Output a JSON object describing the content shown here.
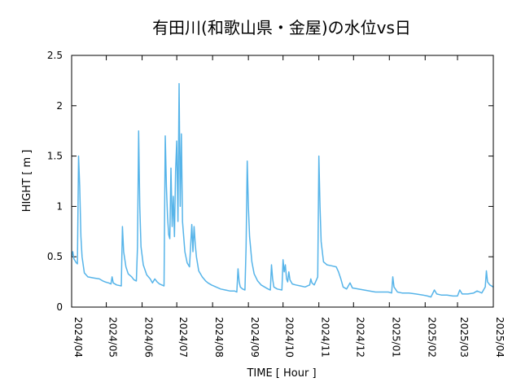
{
  "chart_data": {
    "type": "line",
    "title": "有田川(和歌山県・金屋)の水位vs日",
    "xlabel": "TIME [ Hour ]",
    "ylabel": "HIGHT [ m ]",
    "xlim": [
      "2024-04-01",
      "2025-04-01"
    ],
    "ylim": [
      0,
      2.5
    ],
    "grid": false,
    "legend": "none",
    "line_color": "#56b4e9",
    "x_ticks": [
      "2024/04",
      "2024/05",
      "2024/06",
      "2024/07",
      "2024/08",
      "2024/09",
      "2024/10",
      "2024/11",
      "2024/12",
      "2025/01",
      "2025/02",
      "2025/03",
      "2025/04"
    ],
    "x_tick_dates": [
      "2024-04-01",
      "2024-05-01",
      "2024-06-01",
      "2024-07-01",
      "2024-08-01",
      "2024-09-01",
      "2024-10-01",
      "2024-11-01",
      "2024-12-01",
      "2025-01-01",
      "2025-02-01",
      "2025-03-01",
      "2025-04-01"
    ],
    "y_ticks": [
      "0",
      "0.5",
      "1",
      "1.5",
      "2",
      "2.5"
    ],
    "y_tick_values": [
      0,
      0.5,
      1,
      1.5,
      2,
      2.5
    ],
    "series": [
      {
        "points": [
          [
            "2024-04-01",
            0.5
          ],
          [
            "2024-04-02",
            0.55
          ],
          [
            "2024-04-03",
            0.48
          ],
          [
            "2024-04-05",
            0.44
          ],
          [
            "2024-04-06",
            0.43
          ],
          [
            "2024-04-07",
            1.5
          ],
          [
            "2024-04-08",
            1.2
          ],
          [
            "2024-04-09",
            0.7
          ],
          [
            "2024-04-10",
            0.5
          ],
          [
            "2024-04-12",
            0.34
          ],
          [
            "2024-04-15",
            0.3
          ],
          [
            "2024-04-20",
            0.29
          ],
          [
            "2024-04-25",
            0.28
          ],
          [
            "2024-04-28",
            0.26
          ],
          [
            "2024-04-30",
            0.25
          ],
          [
            "2024-05-03",
            0.24
          ],
          [
            "2024-05-05",
            0.23
          ],
          [
            "2024-05-06",
            0.3
          ],
          [
            "2024-05-07",
            0.24
          ],
          [
            "2024-05-10",
            0.22
          ],
          [
            "2024-05-14",
            0.21
          ],
          [
            "2024-05-15",
            0.8
          ],
          [
            "2024-05-16",
            0.55
          ],
          [
            "2024-05-18",
            0.4
          ],
          [
            "2024-05-20",
            0.33
          ],
          [
            "2024-05-23",
            0.3
          ],
          [
            "2024-05-25",
            0.27
          ],
          [
            "2024-05-27",
            0.26
          ],
          [
            "2024-05-28",
            0.6
          ],
          [
            "2024-05-29",
            1.75
          ],
          [
            "2024-05-30",
            1.0
          ],
          [
            "2024-05-31",
            0.6
          ],
          [
            "2024-06-02",
            0.42
          ],
          [
            "2024-06-05",
            0.32
          ],
          [
            "2024-06-08",
            0.28
          ],
          [
            "2024-06-10",
            0.24
          ],
          [
            "2024-06-12",
            0.28
          ],
          [
            "2024-06-14",
            0.25
          ],
          [
            "2024-06-16",
            0.23
          ],
          [
            "2024-06-18",
            0.22
          ],
          [
            "2024-06-20",
            0.21
          ],
          [
            "2024-06-21",
            1.7
          ],
          [
            "2024-06-22",
            1.2
          ],
          [
            "2024-06-23",
            0.9
          ],
          [
            "2024-06-24",
            0.72
          ],
          [
            "2024-06-25",
            0.68
          ],
          [
            "2024-06-26",
            1.38
          ],
          [
            "2024-06-27",
            0.8
          ],
          [
            "2024-06-28",
            1.1
          ],
          [
            "2024-06-29",
            0.7
          ],
          [
            "2024-06-30",
            1.35
          ],
          [
            "2024-07-01",
            1.65
          ],
          [
            "2024-07-02",
            0.85
          ],
          [
            "2024-07-03",
            2.22
          ],
          [
            "2024-07-04",
            1.0
          ],
          [
            "2024-07-05",
            1.72
          ],
          [
            "2024-07-06",
            0.85
          ],
          [
            "2024-07-08",
            0.55
          ],
          [
            "2024-07-10",
            0.44
          ],
          [
            "2024-07-12",
            0.4
          ],
          [
            "2024-07-14",
            0.82
          ],
          [
            "2024-07-15",
            0.55
          ],
          [
            "2024-07-16",
            0.8
          ],
          [
            "2024-07-17",
            0.62
          ],
          [
            "2024-07-18",
            0.5
          ],
          [
            "2024-07-20",
            0.36
          ],
          [
            "2024-07-23",
            0.3
          ],
          [
            "2024-07-26",
            0.26
          ],
          [
            "2024-07-28",
            0.24
          ],
          [
            "2024-07-31",
            0.22
          ],
          [
            "2024-08-04",
            0.2
          ],
          [
            "2024-08-08",
            0.18
          ],
          [
            "2024-08-12",
            0.17
          ],
          [
            "2024-08-16",
            0.16
          ],
          [
            "2024-08-20",
            0.16
          ],
          [
            "2024-08-22",
            0.15
          ],
          [
            "2024-08-23",
            0.38
          ],
          [
            "2024-08-24",
            0.25
          ],
          [
            "2024-08-25",
            0.2
          ],
          [
            "2024-08-27",
            0.18
          ],
          [
            "2024-08-29",
            0.17
          ],
          [
            "2024-08-30",
            0.6
          ],
          [
            "2024-08-31",
            1.45
          ],
          [
            "2024-09-01",
            1.0
          ],
          [
            "2024-09-02",
            0.7
          ],
          [
            "2024-09-04",
            0.45
          ],
          [
            "2024-09-06",
            0.33
          ],
          [
            "2024-09-09",
            0.26
          ],
          [
            "2024-09-12",
            0.22
          ],
          [
            "2024-09-15",
            0.2
          ],
          [
            "2024-09-18",
            0.18
          ],
          [
            "2024-09-20",
            0.17
          ],
          [
            "2024-09-21",
            0.42
          ],
          [
            "2024-09-22",
            0.28
          ],
          [
            "2024-09-23",
            0.2
          ],
          [
            "2024-09-26",
            0.18
          ],
          [
            "2024-09-30",
            0.17
          ],
          [
            "2024-10-01",
            0.47
          ],
          [
            "2024-10-02",
            0.35
          ],
          [
            "2024-10-03",
            0.42
          ],
          [
            "2024-10-04",
            0.28
          ],
          [
            "2024-10-05",
            0.25
          ],
          [
            "2024-10-06",
            0.35
          ],
          [
            "2024-10-07",
            0.27
          ],
          [
            "2024-10-09",
            0.23
          ],
          [
            "2024-10-12",
            0.22
          ],
          [
            "2024-10-16",
            0.21
          ],
          [
            "2024-10-20",
            0.2
          ],
          [
            "2024-10-24",
            0.22
          ],
          [
            "2024-10-25",
            0.28
          ],
          [
            "2024-10-26",
            0.24
          ],
          [
            "2024-10-28",
            0.22
          ],
          [
            "2024-10-31",
            0.3
          ],
          [
            "2024-11-01",
            1.5
          ],
          [
            "2024-11-02",
            1.0
          ],
          [
            "2024-11-03",
            0.65
          ],
          [
            "2024-11-05",
            0.45
          ],
          [
            "2024-11-08",
            0.42
          ],
          [
            "2024-11-12",
            0.41
          ],
          [
            "2024-11-16",
            0.4
          ],
          [
            "2024-11-18",
            0.35
          ],
          [
            "2024-11-20",
            0.28
          ],
          [
            "2024-11-22",
            0.2
          ],
          [
            "2024-11-25",
            0.18
          ],
          [
            "2024-11-28",
            0.24
          ],
          [
            "2024-11-30",
            0.19
          ],
          [
            "2024-12-05",
            0.18
          ],
          [
            "2024-12-10",
            0.17
          ],
          [
            "2024-12-15",
            0.16
          ],
          [
            "2024-12-20",
            0.15
          ],
          [
            "2024-12-25",
            0.15
          ],
          [
            "2024-12-31",
            0.15
          ],
          [
            "2025-01-03",
            0.14
          ],
          [
            "2025-01-04",
            0.3
          ],
          [
            "2025-01-05",
            0.2
          ],
          [
            "2025-01-08",
            0.15
          ],
          [
            "2025-01-12",
            0.14
          ],
          [
            "2025-01-18",
            0.14
          ],
          [
            "2025-01-24",
            0.13
          ],
          [
            "2025-01-30",
            0.12
          ],
          [
            "2025-02-03",
            0.11
          ],
          [
            "2025-02-06",
            0.1
          ],
          [
            "2025-02-09",
            0.17
          ],
          [
            "2025-02-11",
            0.13
          ],
          [
            "2025-02-15",
            0.12
          ],
          [
            "2025-02-20",
            0.12
          ],
          [
            "2025-02-25",
            0.11
          ],
          [
            "2025-03-01",
            0.11
          ],
          [
            "2025-03-03",
            0.17
          ],
          [
            "2025-03-05",
            0.13
          ],
          [
            "2025-03-10",
            0.13
          ],
          [
            "2025-03-15",
            0.14
          ],
          [
            "2025-03-18",
            0.16
          ],
          [
            "2025-03-22",
            0.14
          ],
          [
            "2025-03-25",
            0.2
          ],
          [
            "2025-03-26",
            0.36
          ],
          [
            "2025-03-27",
            0.25
          ],
          [
            "2025-03-29",
            0.22
          ],
          [
            "2025-04-01",
            0.2
          ]
        ]
      }
    ]
  }
}
